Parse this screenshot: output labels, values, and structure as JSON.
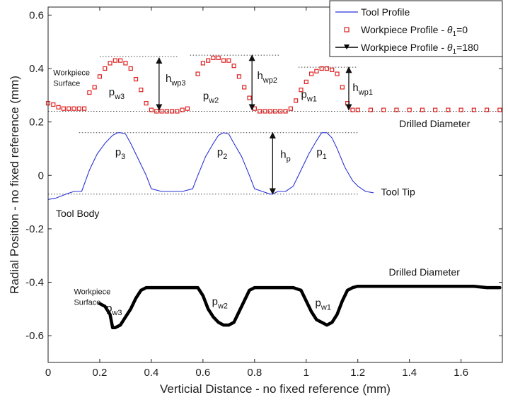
{
  "chart_data": {
    "type": "line",
    "xlabel": "Verticial Distance - no fixed reference (mm)",
    "ylabel": "Radial Position - no fixed reference (mm)",
    "xlim": [
      0,
      1.76
    ],
    "ylim": [
      -0.7,
      0.63
    ],
    "x_ticks": [
      0,
      0.2,
      0.4,
      0.6,
      0.8,
      1,
      1.2,
      1.4,
      1.6
    ],
    "x_tick_labels": [
      "0",
      "0.2",
      "0.4",
      "0.6",
      "0.8",
      "1",
      "1.2",
      "1.4",
      "1.6"
    ],
    "y_ticks": [
      -0.6,
      -0.4,
      -0.2,
      0,
      0.2,
      0.4,
      0.6
    ],
    "y_tick_labels": [
      "-0.6",
      "-0.4",
      "-0.2",
      "0",
      "0.2",
      "0.4",
      "0.6"
    ],
    "grid": false,
    "legend_position": "top-right",
    "series": [
      {
        "name": "Tool Profile",
        "legend_prefix": "Tool Profile",
        "legend_theta": "",
        "legend_suffix": "",
        "color": "#2b34d6",
        "style": "line",
        "x": [
          0.0,
          0.03,
          0.07,
          0.1,
          0.13,
          0.16,
          0.19,
          0.22,
          0.25,
          0.27,
          0.28,
          0.3,
          0.32,
          0.35,
          0.38,
          0.4,
          0.44,
          0.48,
          0.52,
          0.56,
          0.58,
          0.61,
          0.64,
          0.66,
          0.68,
          0.7,
          0.72,
          0.75,
          0.78,
          0.8,
          0.83,
          0.86,
          0.87,
          0.89,
          0.92,
          0.95,
          0.98,
          1.01,
          1.04,
          1.06,
          1.08,
          1.1,
          1.12,
          1.15,
          1.18,
          1.2,
          1.23,
          1.26
        ],
        "y": [
          -0.09,
          -0.085,
          -0.07,
          -0.06,
          -0.06,
          0.02,
          0.08,
          0.12,
          0.15,
          0.16,
          0.16,
          0.155,
          0.12,
          0.06,
          0.0,
          -0.05,
          -0.06,
          -0.06,
          -0.06,
          -0.05,
          0.0,
          0.07,
          0.12,
          0.15,
          0.16,
          0.155,
          0.12,
          0.07,
          0.0,
          -0.05,
          -0.06,
          -0.07,
          -0.07,
          -0.06,
          -0.06,
          -0.04,
          0.02,
          0.08,
          0.13,
          0.16,
          0.16,
          0.14,
          0.1,
          0.03,
          -0.02,
          -0.04,
          -0.06,
          -0.065
        ]
      },
      {
        "name": "Workpiece Profile - θ1=0",
        "legend_prefix": "Workpiece Profile - ",
        "legend_theta": "θ",
        "legend_sub": "1",
        "legend_suffix": "=0",
        "color": "#e02020",
        "style": "square-markers",
        "x": [
          0.0,
          0.02,
          0.04,
          0.06,
          0.08,
          0.1,
          0.12,
          0.14,
          0.16,
          0.18,
          0.2,
          0.22,
          0.24,
          0.26,
          0.28,
          0.3,
          0.32,
          0.34,
          0.36,
          0.38,
          0.4,
          0.42,
          0.44,
          0.46,
          0.48,
          0.5,
          0.52,
          0.54,
          0.58,
          0.6,
          0.62,
          0.64,
          0.66,
          0.68,
          0.7,
          0.72,
          0.74,
          0.76,
          0.78,
          0.8,
          0.82,
          0.84,
          0.86,
          0.88,
          0.9,
          0.92,
          0.94,
          0.96,
          0.98,
          1.0,
          1.02,
          1.04,
          1.06,
          1.08,
          1.1,
          1.12,
          1.14,
          1.16,
          1.18,
          1.2,
          1.25,
          1.3,
          1.35,
          1.4,
          1.45,
          1.5,
          1.55,
          1.6,
          1.65,
          1.7,
          1.75
        ],
        "y": [
          0.27,
          0.265,
          0.255,
          0.25,
          0.25,
          0.25,
          0.25,
          0.25,
          0.31,
          0.33,
          0.37,
          0.4,
          0.42,
          0.43,
          0.43,
          0.42,
          0.4,
          0.36,
          0.32,
          0.27,
          0.245,
          0.24,
          0.24,
          0.24,
          0.24,
          0.24,
          0.245,
          0.25,
          0.38,
          0.42,
          0.43,
          0.44,
          0.44,
          0.43,
          0.43,
          0.41,
          0.37,
          0.33,
          0.29,
          0.25,
          0.24,
          0.24,
          0.24,
          0.24,
          0.24,
          0.24,
          0.25,
          0.28,
          0.32,
          0.35,
          0.38,
          0.39,
          0.4,
          0.4,
          0.395,
          0.38,
          0.33,
          0.27,
          0.245,
          0.245,
          0.245,
          0.245,
          0.245,
          0.245,
          0.245,
          0.245,
          0.245,
          0.245,
          0.245,
          0.245,
          0.245
        ]
      },
      {
        "name": "Workpiece Profile - θ1=180",
        "legend_prefix": "Workpiece Profile - ",
        "legend_theta": "θ",
        "legend_sub": "1",
        "legend_suffix": "=180",
        "color": "#000000",
        "style": "thick-line",
        "x": [
          0.2,
          0.22,
          0.24,
          0.25,
          0.26,
          0.28,
          0.3,
          0.32,
          0.34,
          0.36,
          0.38,
          0.4,
          0.45,
          0.5,
          0.55,
          0.58,
          0.6,
          0.62,
          0.64,
          0.66,
          0.68,
          0.7,
          0.72,
          0.74,
          0.76,
          0.78,
          0.8,
          0.85,
          0.9,
          0.95,
          0.98,
          1.0,
          1.02,
          1.04,
          1.06,
          1.08,
          1.1,
          1.12,
          1.14,
          1.16,
          1.18,
          1.2,
          1.25,
          1.3,
          1.35,
          1.4,
          1.45,
          1.5,
          1.55,
          1.6,
          1.65,
          1.7,
          1.75
        ],
        "y": [
          -0.48,
          -0.49,
          -0.52,
          -0.57,
          -0.57,
          -0.56,
          -0.53,
          -0.5,
          -0.46,
          -0.43,
          -0.42,
          -0.42,
          -0.42,
          -0.42,
          -0.42,
          -0.42,
          -0.45,
          -0.5,
          -0.53,
          -0.55,
          -0.56,
          -0.56,
          -0.55,
          -0.51,
          -0.47,
          -0.43,
          -0.42,
          -0.42,
          -0.42,
          -0.42,
          -0.43,
          -0.47,
          -0.51,
          -0.54,
          -0.55,
          -0.56,
          -0.55,
          -0.52,
          -0.47,
          -0.43,
          -0.42,
          -0.415,
          -0.415,
          -0.415,
          -0.415,
          -0.415,
          -0.415,
          -0.415,
          -0.415,
          -0.415,
          -0.415,
          -0.42,
          -0.42
        ]
      }
    ],
    "guide_lines": [
      {
        "x1": 0.2,
        "x2": 0.5,
        "y": 0.445
      },
      {
        "x1": 0.55,
        "x2": 0.9,
        "y": 0.45
      },
      {
        "x1": 0.97,
        "x2": 1.2,
        "y": 0.405
      },
      {
        "x1": 0.0,
        "x2": 1.75,
        "y": 0.24
      },
      {
        "x1": 0.12,
        "x2": 1.2,
        "y": 0.16
      },
      {
        "x1": 0.0,
        "x2": 1.2,
        "y": -0.07
      }
    ],
    "arrows": [
      {
        "x": 0.43,
        "y1": 0.44,
        "y2": 0.245
      },
      {
        "x": 0.79,
        "y1": 0.45,
        "y2": 0.245
      },
      {
        "x": 1.165,
        "y1": 0.405,
        "y2": 0.245
      },
      {
        "x": 0.87,
        "y1": 0.16,
        "y2": -0.07
      }
    ],
    "annotations": [
      {
        "id": "hwp3",
        "x": 0.455,
        "y": 0.35,
        "base": "h",
        "sub": "wp3"
      },
      {
        "id": "hwp2",
        "x": 0.81,
        "y": 0.36,
        "base": "h",
        "sub": "wp2"
      },
      {
        "id": "hwp1",
        "x": 1.18,
        "y": 0.315,
        "base": "h",
        "sub": "wp1"
      },
      {
        "id": "hp",
        "x": 0.9,
        "y": 0.065,
        "base": "h",
        "sub": "p"
      },
      {
        "id": "pw3-top",
        "x": 0.235,
        "y": 0.3,
        "base": "p",
        "sub": "w3"
      },
      {
        "id": "pw2-top",
        "x": 0.6,
        "y": 0.285,
        "base": "p",
        "sub": "w2"
      },
      {
        "id": "pw1-top",
        "x": 0.98,
        "y": 0.29,
        "base": "p",
        "sub": "w1"
      },
      {
        "id": "p3",
        "x": 0.26,
        "y": 0.075,
        "base": "p",
        "sub": "3"
      },
      {
        "id": "p2",
        "x": 0.655,
        "y": 0.075,
        "base": "p",
        "sub": "2"
      },
      {
        "id": "p1",
        "x": 1.04,
        "y": 0.075,
        "base": "p",
        "sub": "1"
      },
      {
        "id": "pw3-bot",
        "x": 0.225,
        "y": -0.51,
        "base": "p",
        "sub": "w3"
      },
      {
        "id": "pw2-bot",
        "x": 0.635,
        "y": -0.485,
        "base": "p",
        "sub": "w2"
      },
      {
        "id": "pw1-bot",
        "x": 1.035,
        "y": -0.49,
        "base": "p",
        "sub": "w1"
      }
    ],
    "labels": [
      {
        "id": "workpiece-surface-top-1",
        "text": "Workpiece",
        "x": 0.02,
        "y": 0.375,
        "size": "small"
      },
      {
        "id": "workpiece-surface-top-2",
        "text": "Surface",
        "x": 0.02,
        "y": 0.335,
        "size": "small"
      },
      {
        "id": "drilled-diameter-top",
        "text": "Drilled Diameter",
        "x": 1.36,
        "y": 0.18,
        "size": "normal"
      },
      {
        "id": "tool-tip",
        "text": "Tool Tip",
        "x": 1.29,
        "y": -0.075,
        "size": "normal"
      },
      {
        "id": "tool-body",
        "text": "Tool Body",
        "x": 0.03,
        "y": -0.155,
        "size": "normal"
      },
      {
        "id": "drilled-diameter-bottom",
        "text": "Drilled Diameter",
        "x": 1.32,
        "y": -0.375,
        "size": "normal"
      },
      {
        "id": "workpiece-surface-bottom-1",
        "text": "Workpiece",
        "x": 0.1,
        "y": -0.445,
        "size": "small"
      },
      {
        "id": "workpiece-surface-bottom-2",
        "text": "Surface",
        "x": 0.1,
        "y": -0.485,
        "size": "small"
      }
    ]
  }
}
